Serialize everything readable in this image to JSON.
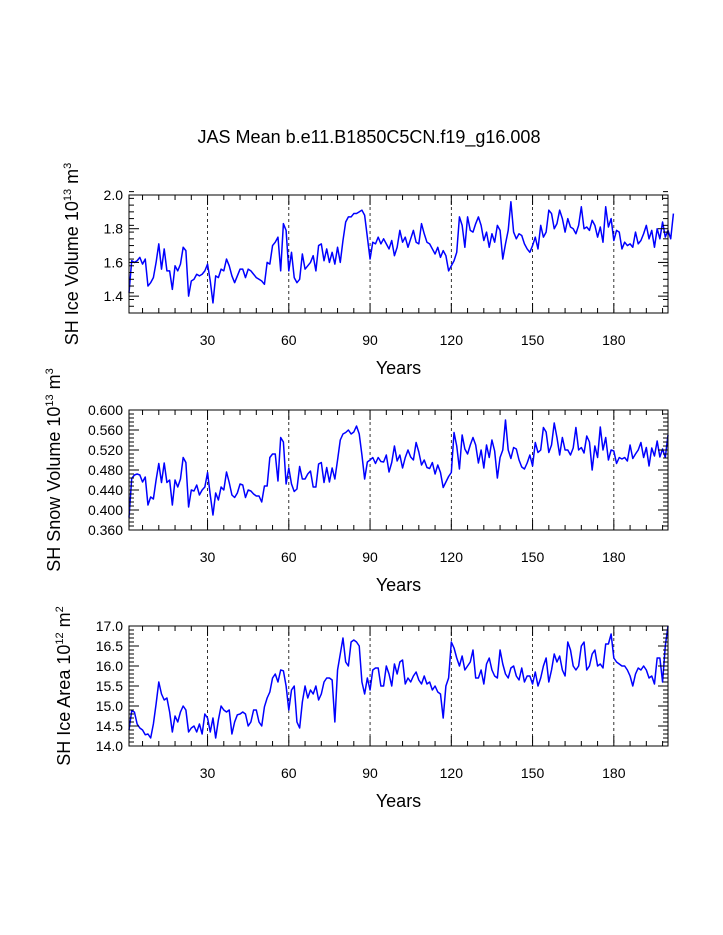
{
  "title": "JAS Mean b.e11.B1850C5CN.f19_g16.008",
  "line_color": "#0000ff",
  "chart_data": [
    {
      "type": "line",
      "name": "SH Ice Volume",
      "ylabel_main": "SH Ice Volume 10",
      "ylabel_exp": "13",
      "ylabel_unit": " m",
      "ylabel_unit_exp": "3",
      "xlabel": "Years",
      "xlim": [
        1,
        200
      ],
      "ylim": [
        1.3,
        2.0
      ],
      "xticks": [
        30,
        60,
        90,
        120,
        150,
        180
      ],
      "yticks": [
        "1.4",
        "1.6",
        "1.8",
        "2.0"
      ],
      "ytick_values": [
        1.4,
        1.6,
        1.8,
        2.0
      ],
      "y_minor_step": 0.04,
      "grid_x": [
        30,
        60,
        90,
        120,
        150,
        180
      ],
      "y": [
        1.42,
        1.61,
        1.6,
        1.61,
        1.63,
        1.59,
        1.62,
        1.46,
        1.48,
        1.51,
        1.6,
        1.71,
        1.56,
        1.68,
        1.55,
        1.55,
        1.44,
        1.58,
        1.55,
        1.59,
        1.69,
        1.67,
        1.4,
        1.49,
        1.5,
        1.53,
        1.52,
        1.53,
        1.55,
        1.59,
        1.49,
        1.36,
        1.52,
        1.51,
        1.56,
        1.55,
        1.62,
        1.58,
        1.52,
        1.48,
        1.52,
        1.56,
        1.56,
        1.51,
        1.56,
        1.55,
        1.53,
        1.51,
        1.5,
        1.49,
        1.47,
        1.6,
        1.59,
        1.7,
        1.72,
        1.75,
        1.55,
        1.83,
        1.79,
        1.55,
        1.66,
        1.51,
        1.48,
        1.5,
        1.65,
        1.56,
        1.58,
        1.6,
        1.64,
        1.55,
        1.7,
        1.71,
        1.61,
        1.68,
        1.6,
        1.66,
        1.59,
        1.69,
        1.6,
        1.73,
        1.84,
        1.87,
        1.87,
        1.89,
        1.89,
        1.9,
        1.91,
        1.88,
        1.75,
        1.62,
        1.72,
        1.71,
        1.75,
        1.71,
        1.74,
        1.71,
        1.68,
        1.73,
        1.64,
        1.69,
        1.79,
        1.72,
        1.75,
        1.69,
        1.74,
        1.79,
        1.72,
        1.71,
        1.83,
        1.77,
        1.72,
        1.71,
        1.68,
        1.65,
        1.69,
        1.63,
        1.67,
        1.64,
        1.55,
        1.58,
        1.61,
        1.66,
        1.87,
        1.82,
        1.69,
        1.87,
        1.79,
        1.78,
        1.83,
        1.87,
        1.82,
        1.73,
        1.78,
        1.69,
        1.77,
        1.72,
        1.82,
        1.79,
        1.62,
        1.71,
        1.79,
        1.96,
        1.78,
        1.74,
        1.77,
        1.76,
        1.71,
        1.68,
        1.66,
        1.7,
        1.75,
        1.68,
        1.82,
        1.75,
        1.78,
        1.91,
        1.89,
        1.8,
        1.83,
        1.91,
        1.86,
        1.78,
        1.86,
        1.81,
        1.8,
        1.77,
        1.82,
        1.93,
        1.8,
        1.81,
        1.79,
        1.85,
        1.82,
        1.75,
        1.81,
        1.72,
        1.93,
        1.81,
        1.86,
        1.73,
        1.79,
        1.78,
        1.68,
        1.72,
        1.7,
        1.71,
        1.69,
        1.78,
        1.71,
        1.73,
        1.77,
        1.82,
        1.74,
        1.79,
        1.69,
        1.8,
        1.74,
        1.84,
        1.75,
        1.79,
        1.74,
        1.89
      ]
    },
    {
      "type": "line",
      "name": "SH Snow Volume",
      "ylabel_main": "SH Snow Volume 10",
      "ylabel_exp": "13",
      "ylabel_unit": " m",
      "ylabel_unit_exp": "3",
      "xlabel": "Years",
      "xlim": [
        1,
        200
      ],
      "ylim": [
        0.36,
        0.6
      ],
      "xticks": [
        30,
        60,
        90,
        120,
        150,
        180
      ],
      "yticks": [
        "0.360",
        "0.400",
        "0.440",
        "0.480",
        "0.520",
        "0.560",
        "0.600"
      ],
      "ytick_values": [
        0.36,
        0.4,
        0.44,
        0.48,
        0.52,
        0.56,
        0.6
      ],
      "y_minor_step": 0.008,
      "grid_x": [
        30,
        60,
        90,
        120,
        150,
        180
      ],
      "y": [
        0.385,
        0.463,
        0.47,
        0.472,
        0.47,
        0.456,
        0.466,
        0.41,
        0.426,
        0.422,
        0.46,
        0.493,
        0.455,
        0.494,
        0.455,
        0.46,
        0.41,
        0.46,
        0.446,
        0.462,
        0.505,
        0.495,
        0.406,
        0.44,
        0.438,
        0.45,
        0.43,
        0.44,
        0.446,
        0.475,
        0.43,
        0.39,
        0.434,
        0.42,
        0.446,
        0.44,
        0.476,
        0.455,
        0.43,
        0.425,
        0.434,
        0.452,
        0.45,
        0.425,
        0.44,
        0.438,
        0.432,
        0.428,
        0.428,
        0.416,
        0.448,
        0.448,
        0.505,
        0.512,
        0.512,
        0.458,
        0.545,
        0.536,
        0.452,
        0.484,
        0.452,
        0.437,
        0.442,
        0.487,
        0.462,
        0.462,
        0.472,
        0.478,
        0.446,
        0.446,
        0.492,
        0.495,
        0.455,
        0.485,
        0.456,
        0.484,
        0.462,
        0.5,
        0.54,
        0.552,
        0.555,
        0.56,
        0.552,
        0.556,
        0.568,
        0.552,
        0.51,
        0.462,
        0.496,
        0.5,
        0.505,
        0.493,
        0.505,
        0.497,
        0.496,
        0.51,
        0.476,
        0.495,
        0.528,
        0.498,
        0.51,
        0.484,
        0.505,
        0.52,
        0.506,
        0.5,
        0.535,
        0.516,
        0.49,
        0.5,
        0.485,
        0.483,
        0.495,
        0.472,
        0.49,
        0.475,
        0.445,
        0.456,
        0.467,
        0.475,
        0.555,
        0.528,
        0.482,
        0.55,
        0.522,
        0.512,
        0.53,
        0.545,
        0.53,
        0.494,
        0.52,
        0.484,
        0.53,
        0.505,
        0.54,
        0.518,
        0.464,
        0.505,
        0.52,
        0.58,
        0.52,
        0.503,
        0.525,
        0.522,
        0.5,
        0.486,
        0.482,
        0.494,
        0.51,
        0.488,
        0.535,
        0.515,
        0.52,
        0.565,
        0.556,
        0.515,
        0.53,
        0.574,
        0.545,
        0.51,
        0.545,
        0.52,
        0.52,
        0.51,
        0.524,
        0.565,
        0.52,
        0.525,
        0.514,
        0.548,
        0.536,
        0.48,
        0.528,
        0.505,
        0.566,
        0.52,
        0.545,
        0.5,
        0.52,
        0.518,
        0.493,
        0.505,
        0.502,
        0.505,
        0.498,
        0.53,
        0.503,
        0.512,
        0.52,
        0.535,
        0.505,
        0.525,
        0.488,
        0.524,
        0.508,
        0.538,
        0.506,
        0.522,
        0.505,
        0.55
      ]
    },
    {
      "type": "line",
      "name": "SH Ice Area",
      "ylabel_main": "SH Ice Area 10",
      "ylabel_exp": "12",
      "ylabel_unit": " m",
      "ylabel_unit_exp": "2",
      "xlabel": "Years",
      "xlim": [
        1,
        200
      ],
      "ylim": [
        14.0,
        17.0
      ],
      "xticks": [
        30,
        60,
        90,
        120,
        150,
        180
      ],
      "yticks": [
        "14.0",
        "14.5",
        "15.0",
        "15.5",
        "16.0",
        "16.5",
        "17.0"
      ],
      "ytick_values": [
        14.0,
        14.5,
        15.0,
        15.5,
        16.0,
        16.5,
        17.0
      ],
      "y_minor_step": 0.1,
      "grid_x": [
        30,
        60,
        90,
        120,
        150,
        180
      ],
      "y": [
        14.4,
        14.88,
        14.85,
        14.55,
        14.45,
        14.4,
        14.28,
        14.3,
        14.2,
        14.55,
        15.05,
        15.6,
        15.3,
        15.15,
        15.2,
        14.85,
        14.35,
        14.75,
        14.6,
        14.85,
        15.0,
        14.9,
        14.35,
        14.45,
        14.5,
        14.35,
        14.55,
        14.3,
        14.8,
        14.7,
        14.35,
        14.7,
        14.2,
        14.65,
        15.0,
        14.9,
        14.85,
        14.9,
        14.3,
        14.6,
        14.78,
        14.8,
        14.85,
        14.8,
        14.5,
        14.6,
        14.9,
        14.9,
        14.6,
        14.5,
        14.98,
        15.2,
        15.35,
        15.7,
        15.8,
        15.6,
        15.9,
        15.88,
        15.5,
        14.9,
        15.4,
        15.5,
        14.6,
        14.45,
        15.1,
        15.5,
        15.2,
        15.4,
        15.3,
        15.5,
        15.15,
        15.3,
        15.6,
        15.7,
        15.7,
        15.65,
        14.6,
        15.9,
        16.3,
        16.7,
        16.1,
        16.0,
        16.6,
        16.65,
        16.6,
        16.5,
        15.6,
        15.3,
        15.7,
        15.4,
        15.9,
        15.95,
        15.95,
        15.5,
        15.5,
        16.0,
        15.8,
        15.5,
        16.05,
        15.8,
        16.1,
        16.15,
        15.55,
        15.7,
        15.6,
        15.75,
        15.85,
        15.65,
        15.55,
        15.75,
        15.55,
        15.6,
        15.4,
        15.5,
        15.35,
        15.3,
        14.7,
        15.5,
        15.7,
        16.6,
        16.45,
        16.2,
        16.0,
        16.25,
        15.9,
        16.0,
        16.1,
        16.4,
        15.7,
        15.7,
        15.9,
        15.55,
        16.05,
        16.2,
        15.9,
        15.75,
        15.7,
        16.4,
        16.05,
        15.8,
        15.7,
        15.95,
        16.0,
        15.75,
        15.65,
        15.95,
        15.6,
        15.75,
        15.75,
        15.55,
        15.85,
        15.5,
        15.7,
        16.0,
        16.2,
        15.6,
        15.9,
        16.3,
        16.1,
        16.25,
        15.9,
        15.75,
        16.6,
        16.4,
        16.0,
        15.9,
        16.0,
        16.5,
        16.6,
        15.9,
        16.0,
        16.3,
        16.4,
        16.0,
        16.05,
        15.95,
        16.55,
        16.55,
        16.8,
        16.2,
        16.1,
        16.05,
        16.0,
        16.0,
        15.9,
        15.75,
        15.5,
        15.8,
        15.95,
        15.9,
        16.0,
        15.9,
        15.7,
        15.75,
        15.55,
        16.2,
        16.2,
        15.6,
        16.5,
        17.0
      ]
    }
  ]
}
